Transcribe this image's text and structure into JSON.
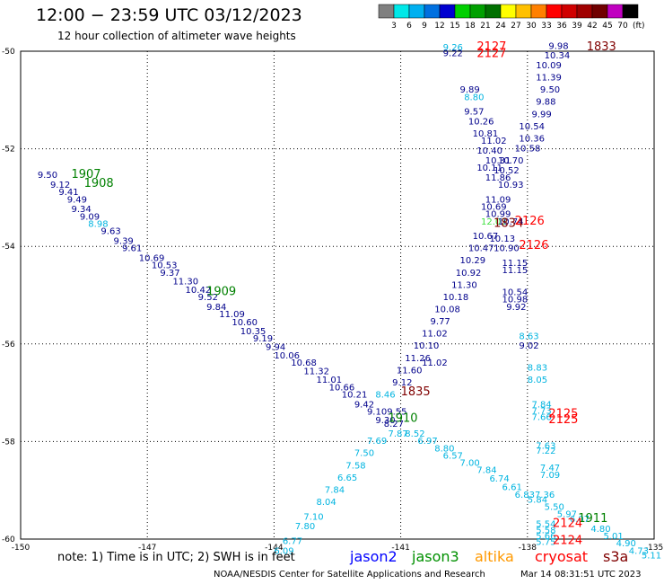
{
  "title": "12:00 − 23:59 UTC 03/12/2023",
  "subtitle": "12 hour collection of altimeter wave heights",
  "legend": {
    "labels": [
      "3",
      "6",
      "9",
      "12",
      "15",
      "18",
      "21",
      "24",
      "27",
      "30",
      "33",
      "36",
      "39",
      "42",
      "45",
      "70"
    ],
    "unit": "(ft)",
    "colors": [
      "#808080",
      "#00e8e8",
      "#00b0f0",
      "#0070e0",
      "#0000d0",
      "#00d000",
      "#00a000",
      "#007000",
      "#ffff00",
      "#ffc000",
      "#ff8000",
      "#ff0000",
      "#d00000",
      "#a00000",
      "#700000",
      "#c000c0",
      "#000000"
    ]
  },
  "note": "note:  1) Time is in UTC;  2) SWH is in feet",
  "credit": "NOAA/NESDIS Center for Satellite Applications and Research",
  "timestamp": "Mar 14 08:31:51 UTC 2023",
  "satellites": [
    {
      "name": "jason2",
      "color": "#0000ff"
    },
    {
      "name": "jason3",
      "color": "#009000"
    },
    {
      "name": "altika",
      "color": "#ff9900"
    },
    {
      "name": "cryosat",
      "color": "#ff0000"
    },
    {
      "name": "s3a",
      "color": "#800000"
    }
  ],
  "axes": {
    "lon_ticks": [
      "-150",
      "-147",
      "-144",
      "-141",
      "-138",
      "-135"
    ],
    "lat_ticks": [
      "-50",
      "-52",
      "-54",
      "-56",
      "-58",
      "-60"
    ]
  },
  "colors": {
    "dark_blue": "#00008b",
    "cyan": "#00b4e0",
    "light_green": "#40e040",
    "dark_green": "#008000",
    "red": "#ff0000",
    "maroon": "#800000"
  },
  "chart_data": {
    "type": "scatter",
    "title": "12:00 − 23:59 UTC 03/12/2023",
    "x_range": [
      -150,
      -135
    ],
    "y_range": [
      -60,
      -50
    ],
    "grid": true,
    "legend": "top-right",
    "value_labels": [
      {
        "text": "9.50",
        "lon": -149.6,
        "lat": -52.6,
        "c": "dark_blue"
      },
      {
        "text": "9.12",
        "lon": -149.3,
        "lat": -52.8,
        "c": "dark_blue"
      },
      {
        "text": "9.41",
        "lon": -149.1,
        "lat": -52.95,
        "c": "dark_blue"
      },
      {
        "text": "9.49",
        "lon": -148.9,
        "lat": -53.1,
        "c": "dark_blue"
      },
      {
        "text": "9.34",
        "lon": -148.8,
        "lat": -53.3,
        "c": "dark_blue"
      },
      {
        "text": "9.09",
        "lon": -148.6,
        "lat": -53.45,
        "c": "dark_blue"
      },
      {
        "text": "8.98",
        "lon": -148.4,
        "lat": -53.6,
        "c": "cyan"
      },
      {
        "text": "9.63",
        "lon": -148.1,
        "lat": -53.75,
        "c": "dark_blue"
      },
      {
        "text": "9.39",
        "lon": -147.8,
        "lat": -53.95,
        "c": "dark_blue"
      },
      {
        "text": "9.61",
        "lon": -147.6,
        "lat": -54.1,
        "c": "dark_blue"
      },
      {
        "text": "10.69",
        "lon": -147.2,
        "lat": -54.3,
        "c": "dark_blue"
      },
      {
        "text": "10.53",
        "lon": -146.9,
        "lat": -54.45,
        "c": "dark_blue"
      },
      {
        "text": "9.37",
        "lon": -146.7,
        "lat": -54.6,
        "c": "dark_blue"
      },
      {
        "text": "11.30",
        "lon": -146.4,
        "lat": -54.78,
        "c": "dark_blue"
      },
      {
        "text": "10.42",
        "lon": -146.1,
        "lat": -54.95,
        "c": "dark_blue"
      },
      {
        "text": "9.52",
        "lon": -145.8,
        "lat": -55.1,
        "c": "dark_blue"
      },
      {
        "text": "9.84",
        "lon": -145.6,
        "lat": -55.3,
        "c": "dark_blue"
      },
      {
        "text": "11.09",
        "lon": -145.3,
        "lat": -55.45,
        "c": "dark_blue"
      },
      {
        "text": "10.60",
        "lon": -145.0,
        "lat": -55.62,
        "c": "dark_blue"
      },
      {
        "text": "10.35",
        "lon": -144.8,
        "lat": -55.8,
        "c": "dark_blue"
      },
      {
        "text": "9.19",
        "lon": -144.5,
        "lat": -55.95,
        "c": "dark_blue"
      },
      {
        "text": "9.94",
        "lon": -144.2,
        "lat": -56.12,
        "c": "dark_blue"
      },
      {
        "text": "10.06",
        "lon": -144.0,
        "lat": -56.3,
        "c": "dark_blue"
      },
      {
        "text": "10.68",
        "lon": -143.6,
        "lat": -56.45,
        "c": "dark_blue"
      },
      {
        "text": "11.32",
        "lon": -143.3,
        "lat": -56.62,
        "c": "dark_blue"
      },
      {
        "text": "11.01",
        "lon": -143.0,
        "lat": -56.8,
        "c": "dark_blue"
      },
      {
        "text": "10.66",
        "lon": -142.7,
        "lat": -56.95,
        "c": "dark_blue"
      },
      {
        "text": "10.21",
        "lon": -142.4,
        "lat": -57.1,
        "c": "dark_blue"
      },
      {
        "text": "9.42",
        "lon": -142.1,
        "lat": -57.3,
        "c": "dark_blue"
      },
      {
        "text": "9.109.55",
        "lon": -141.8,
        "lat": -57.45,
        "c": "dark_blue"
      },
      {
        "text": "9.30",
        "lon": -141.6,
        "lat": -57.62,
        "c": "dark_blue"
      },
      {
        "text": "8.27",
        "lon": -141.4,
        "lat": -57.7,
        "c": "dark_blue"
      },
      {
        "text": "7.87",
        "lon": -141.3,
        "lat": -57.9,
        "c": "cyan"
      },
      {
        "text": "8.52",
        "lon": -140.9,
        "lat": -57.9,
        "c": "cyan"
      },
      {
        "text": "6.97",
        "lon": -140.6,
        "lat": -58.05,
        "c": "cyan"
      },
      {
        "text": "8.80",
        "lon": -140.2,
        "lat": -58.2,
        "c": "cyan"
      },
      {
        "text": "6.57",
        "lon": -140.0,
        "lat": -58.35,
        "c": "cyan"
      },
      {
        "text": "7.00",
        "lon": -139.6,
        "lat": -58.5,
        "c": "cyan"
      },
      {
        "text": "7.84",
        "lon": -139.2,
        "lat": -58.65,
        "c": "cyan"
      },
      {
        "text": "6.74",
        "lon": -138.9,
        "lat": -58.82,
        "c": "cyan"
      },
      {
        "text": "6.61",
        "lon": -138.6,
        "lat": -59.0,
        "c": "cyan"
      },
      {
        "text": "6.837.36",
        "lon": -138.3,
        "lat": -59.15,
        "c": "cyan"
      },
      {
        "text": "5.84",
        "lon": -138.0,
        "lat": -59.25,
        "c": "cyan"
      },
      {
        "text": "5.50",
        "lon": -137.6,
        "lat": -59.4,
        "c": "cyan"
      },
      {
        "text": "5.97",
        "lon": -137.3,
        "lat": -59.55,
        "c": "cyan"
      },
      {
        "text": "6.07",
        "lon": -137.0,
        "lat": -59.65,
        "c": "cyan"
      },
      {
        "text": "4.80",
        "lon": -136.5,
        "lat": -59.85,
        "c": "cyan"
      },
      {
        "text": "5.01",
        "lon": -136.2,
        "lat": -60.0,
        "c": "cyan"
      },
      {
        "text": "4.90",
        "lon": -135.9,
        "lat": -60.15,
        "c": "cyan"
      },
      {
        "text": "4.73",
        "lon": -135.6,
        "lat": -60.3,
        "c": "cyan"
      },
      {
        "text": "5.11",
        "lon": -135.3,
        "lat": -60.4,
        "c": "cyan"
      },
      {
        "text": "5.54",
        "lon": -137.8,
        "lat": -59.75,
        "c": "cyan"
      },
      {
        "text": "5.58",
        "lon": -137.8,
        "lat": -59.88,
        "c": "cyan"
      },
      {
        "text": "5.66",
        "lon": -137.8,
        "lat": -60.0,
        "c": "cyan"
      },
      {
        "text": "5.75",
        "lon": -137.8,
        "lat": -60.12,
        "c": "cyan"
      },
      {
        "text": "6.09",
        "lon": -144.0,
        "lat": -60.3,
        "c": "cyan"
      },
      {
        "text": "6.77",
        "lon": -143.8,
        "lat": -60.1,
        "c": "cyan"
      },
      {
        "text": "7.80",
        "lon": -143.5,
        "lat": -59.8,
        "c": "cyan"
      },
      {
        "text": "7.10",
        "lon": -143.3,
        "lat": -59.6,
        "c": "cyan"
      },
      {
        "text": "8.04",
        "lon": -143.0,
        "lat": -59.3,
        "c": "cyan"
      },
      {
        "text": "7.84",
        "lon": -142.8,
        "lat": -59.05,
        "c": "cyan"
      },
      {
        "text": "6.65",
        "lon": -142.5,
        "lat": -58.8,
        "c": "cyan"
      },
      {
        "text": "7.58",
        "lon": -142.3,
        "lat": -58.55,
        "c": "cyan"
      },
      {
        "text": "7.50",
        "lon": -142.1,
        "lat": -58.3,
        "c": "cyan"
      },
      {
        "text": "7.69",
        "lon": -141.8,
        "lat": -58.05,
        "c": "cyan"
      },
      {
        "text": "8.46",
        "lon": -141.6,
        "lat": -57.1,
        "c": "cyan"
      },
      {
        "text": "9.12",
        "lon": -141.2,
        "lat": -56.85,
        "c": "dark_blue"
      },
      {
        "text": "11.60",
        "lon": -141.1,
        "lat": -56.6,
        "c": "dark_blue"
      },
      {
        "text": "11.26",
        "lon": -140.9,
        "lat": -56.35,
        "c": "dark_blue"
      },
      {
        "text": "10.10",
        "lon": -140.7,
        "lat": -56.1,
        "c": "dark_blue"
      },
      {
        "text": "11.02",
        "lon": -140.5,
        "lat": -55.85,
        "c": "dark_blue"
      },
      {
        "text": "11.02",
        "lon": -140.5,
        "lat": -56.45,
        "c": "dark_blue"
      },
      {
        "text": "9.77",
        "lon": -140.3,
        "lat": -55.6,
        "c": "dark_blue"
      },
      {
        "text": "10.08",
        "lon": -140.2,
        "lat": -55.35,
        "c": "dark_blue"
      },
      {
        "text": "10.18",
        "lon": -140.0,
        "lat": -55.1,
        "c": "dark_blue"
      },
      {
        "text": "11.30",
        "lon": -139.8,
        "lat": -54.85,
        "c": "dark_blue"
      },
      {
        "text": "10.92",
        "lon": -139.7,
        "lat": -54.6,
        "c": "dark_blue"
      },
      {
        "text": "10.29",
        "lon": -139.6,
        "lat": -54.35,
        "c": "dark_blue"
      },
      {
        "text": "10.47",
        "lon": -139.4,
        "lat": -54.1,
        "c": "dark_blue"
      },
      {
        "text": "10.67",
        "lon": -139.3,
        "lat": -53.85,
        "c": "dark_blue"
      },
      {
        "text": "10.13",
        "lon": -138.9,
        "lat": -53.9,
        "c": "dark_blue"
      },
      {
        "text": "10.90",
        "lon": -138.8,
        "lat": -54.1,
        "c": "dark_blue"
      },
      {
        "text": "11.15",
        "lon": -138.6,
        "lat": -54.4,
        "c": "dark_blue"
      },
      {
        "text": "11.15",
        "lon": -138.6,
        "lat": -54.55,
        "c": "dark_blue"
      },
      {
        "text": "10.54",
        "lon": -138.6,
        "lat": -55.0,
        "c": "dark_blue"
      },
      {
        "text": "10.98",
        "lon": -138.6,
        "lat": -55.15,
        "c": "dark_blue"
      },
      {
        "text": "9.92",
        "lon": -138.5,
        "lat": -55.3,
        "c": "dark_blue"
      },
      {
        "text": "8.63",
        "lon": -138.2,
        "lat": -55.9,
        "c": "cyan"
      },
      {
        "text": "9.02",
        "lon": -138.2,
        "lat": -56.1,
        "c": "dark_blue"
      },
      {
        "text": "8.83",
        "lon": -138.0,
        "lat": -56.55,
        "c": "cyan"
      },
      {
        "text": "8.05",
        "lon": -138.0,
        "lat": -56.8,
        "c": "cyan"
      },
      {
        "text": "7.84",
        "lon": -137.9,
        "lat": -57.3,
        "c": "cyan"
      },
      {
        "text": "7.73",
        "lon": -137.9,
        "lat": -57.43,
        "c": "cyan"
      },
      {
        "text": "7.66",
        "lon": -137.9,
        "lat": -57.56,
        "c": "cyan"
      },
      {
        "text": "7.63",
        "lon": -137.8,
        "lat": -58.15,
        "c": "cyan"
      },
      {
        "text": "7.22",
        "lon": -137.8,
        "lat": -58.25,
        "c": "cyan"
      },
      {
        "text": "7.47",
        "lon": -137.7,
        "lat": -58.6,
        "c": "cyan"
      },
      {
        "text": "7.09",
        "lon": -137.7,
        "lat": -58.75,
        "c": "cyan"
      },
      {
        "text": "11.09",
        "lon": -139.0,
        "lat": -53.1,
        "c": "dark_blue"
      },
      {
        "text": "10.69",
        "lon": -139.1,
        "lat": -53.25,
        "c": "dark_blue"
      },
      {
        "text": "10.99",
        "lon": -139.0,
        "lat": -53.4,
        "c": "dark_blue"
      },
      {
        "text": "12.03",
        "lon": -139.1,
        "lat": -53.55,
        "c": "light_green"
      },
      {
        "text": "10.74",
        "lon": -138.7,
        "lat": -53.55,
        "c": "dark_blue"
      },
      {
        "text": "11.86",
        "lon": -139.0,
        "lat": -52.65,
        "c": "dark_blue"
      },
      {
        "text": "10.93",
        "lon": -138.7,
        "lat": -52.8,
        "c": "dark_blue"
      },
      {
        "text": "10.52",
        "lon": -138.8,
        "lat": -52.5,
        "c": "dark_blue"
      },
      {
        "text": "10.11",
        "lon": -139.2,
        "lat": -52.45,
        "c": "dark_blue"
      },
      {
        "text": "10.31",
        "lon": -139.0,
        "lat": -52.3,
        "c": "dark_blue"
      },
      {
        "text": "10.70",
        "lon": -138.7,
        "lat": -52.3,
        "c": "dark_blue"
      },
      {
        "text": "10.40",
        "lon": -139.2,
        "lat": -52.1,
        "c": "dark_blue"
      },
      {
        "text": "10.58",
        "lon": -138.3,
        "lat": -52.05,
        "c": "dark_blue"
      },
      {
        "text": "11.02",
        "lon": -139.1,
        "lat": -51.9,
        "c": "dark_blue"
      },
      {
        "text": "10.81",
        "lon": -139.3,
        "lat": -51.75,
        "c": "dark_blue"
      },
      {
        "text": "10.36",
        "lon": -138.2,
        "lat": -51.85,
        "c": "dark_blue"
      },
      {
        "text": "10.26",
        "lon": -139.4,
        "lat": -51.5,
        "c": "dark_blue"
      },
      {
        "text": "10.54",
        "lon": -138.2,
        "lat": -51.6,
        "c": "dark_blue"
      },
      {
        "text": "9.57",
        "lon": -139.5,
        "lat": -51.3,
        "c": "dark_blue"
      },
      {
        "text": "9.99",
        "lon": -137.9,
        "lat": -51.35,
        "c": "dark_blue"
      },
      {
        "text": "8.80",
        "lon": -139.5,
        "lat": -51.0,
        "c": "cyan"
      },
      {
        "text": "9.88",
        "lon": -137.8,
        "lat": -51.1,
        "c": "dark_blue"
      },
      {
        "text": "9.89",
        "lon": -139.6,
        "lat": -50.85,
        "c": "dark_blue"
      },
      {
        "text": "9.50",
        "lon": -137.7,
        "lat": -50.85,
        "c": "dark_blue"
      },
      {
        "text": "11.39",
        "lon": -137.8,
        "lat": -50.6,
        "c": "dark_blue"
      },
      {
        "text": "10.09",
        "lon": -137.8,
        "lat": -50.35,
        "c": "dark_blue"
      },
      {
        "text": "10.34",
        "lon": -137.6,
        "lat": -50.15,
        "c": "dark_blue"
      },
      {
        "text": "9.98",
        "lon": -137.5,
        "lat": -49.95,
        "c": "dark_blue"
      },
      {
        "text": "9.26",
        "lon": -140.0,
        "lat": -49.98,
        "c": "cyan"
      },
      {
        "text": "9.22",
        "lon": -140.0,
        "lat": -50.1,
        "c": "dark_blue"
      }
    ],
    "time_labels": [
      {
        "text": "1907",
        "lon": -148.8,
        "lat": -52.6,
        "c": "dark_green"
      },
      {
        "text": "1908",
        "lon": -148.5,
        "lat": -52.78,
        "c": "dark_green"
      },
      {
        "text": "1909",
        "lon": -145.6,
        "lat": -55.0,
        "c": "dark_green"
      },
      {
        "text": "1910",
        "lon": -141.3,
        "lat": -57.6,
        "c": "dark_green"
      },
      {
        "text": "1911",
        "lon": -136.8,
        "lat": -59.65,
        "c": "dark_green"
      },
      {
        "text": "1835",
        "lon": -141.0,
        "lat": -57.05,
        "c": "maroon"
      },
      {
        "text": "1833",
        "lon": -136.6,
        "lat": -49.98,
        "c": "maroon"
      },
      {
        "text": "1834",
        "lon": -138.8,
        "lat": -53.6,
        "c": "maroon"
      },
      {
        "text": "2127",
        "lon": -139.2,
        "lat": -49.98,
        "c": "red"
      },
      {
        "text": "2127",
        "lon": -139.2,
        "lat": -50.12,
        "c": "red"
      },
      {
        "text": "2126",
        "lon": -138.3,
        "lat": -53.55,
        "c": "red"
      },
      {
        "text": "2126",
        "lon": -138.2,
        "lat": -54.05,
        "c": "red"
      },
      {
        "text": "2125",
        "lon": -137.5,
        "lat": -57.5,
        "c": "red"
      },
      {
        "text": "2125",
        "lon": -137.5,
        "lat": -57.62,
        "c": "red"
      },
      {
        "text": "2124",
        "lon": -137.4,
        "lat": -59.75,
        "c": "red"
      },
      {
        "text": "2124",
        "lon": -137.4,
        "lat": -60.1,
        "c": "red"
      }
    ]
  }
}
